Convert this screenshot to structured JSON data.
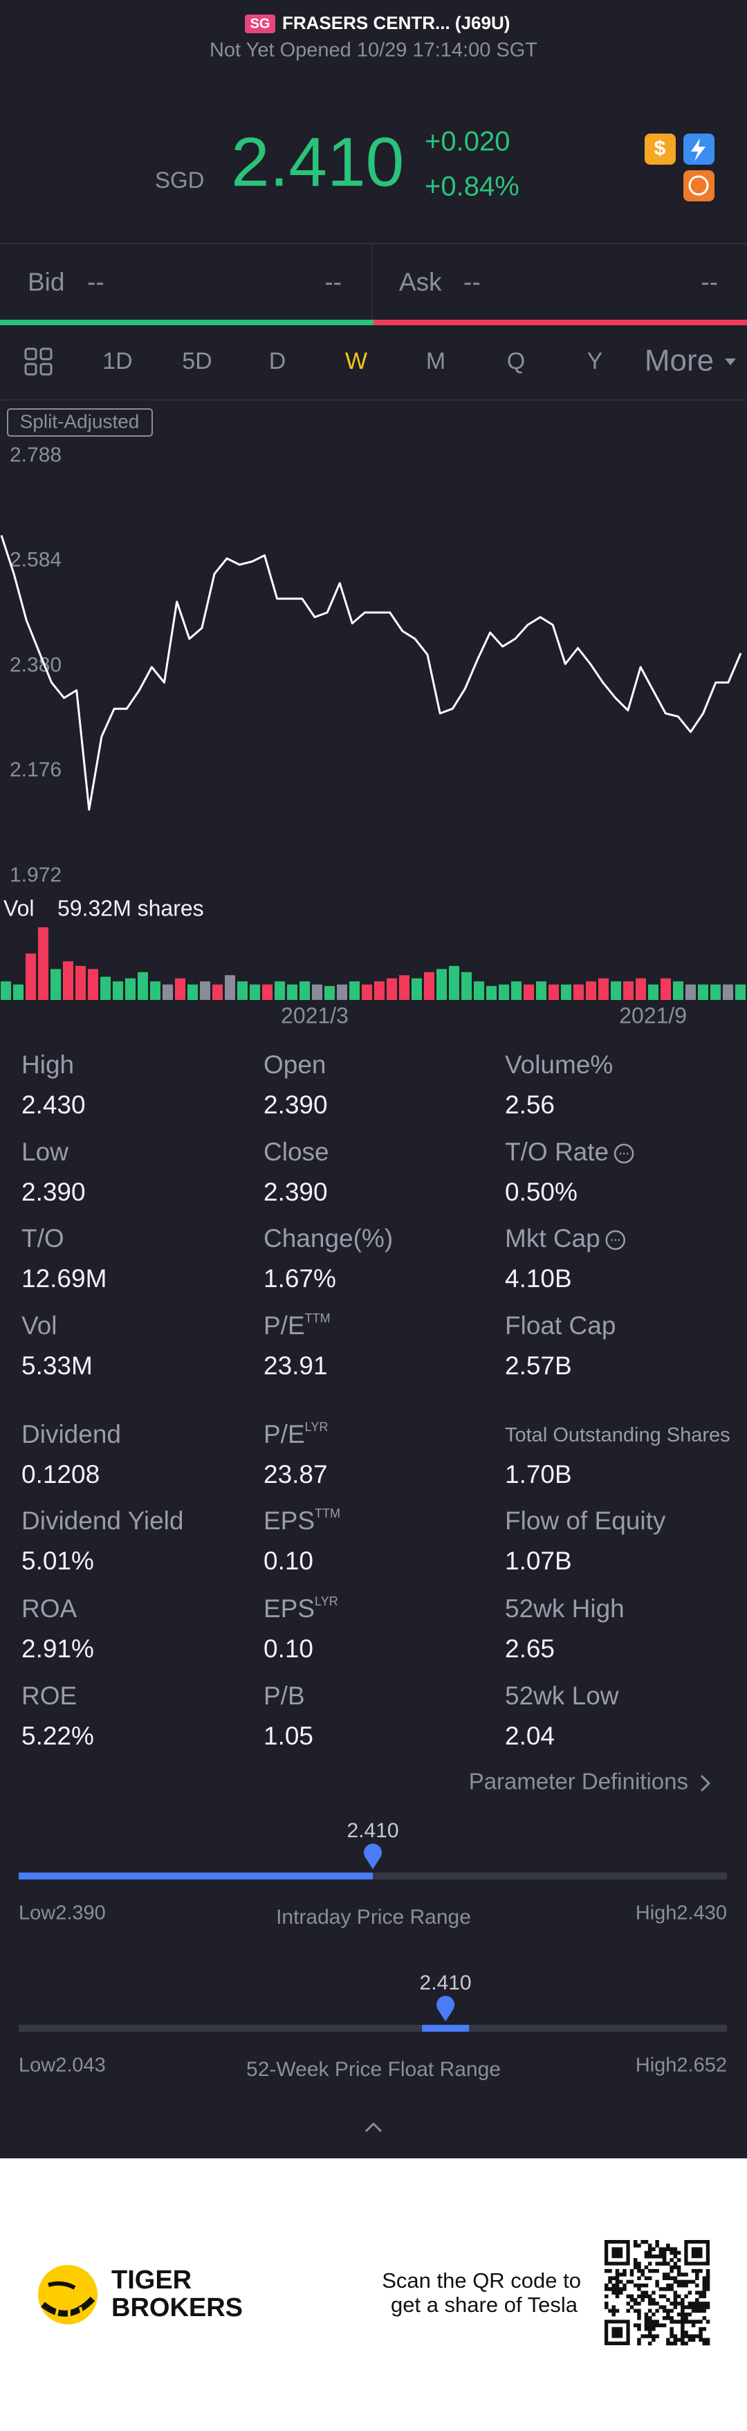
{
  "header": {
    "market_badge": "SG",
    "title": "FRASERS CENTR... (J69U)",
    "status": "Not Yet Opened 10/29 17:14:00 SGT"
  },
  "quote": {
    "currency": "SGD",
    "price": "2.410",
    "change": "+0.020",
    "change_pct": "+0.84%"
  },
  "order_book": {
    "bid_label": "Bid",
    "bid_price": "--",
    "bid_size": "--",
    "ask_label": "Ask",
    "ask_price": "--",
    "ask_size": "--"
  },
  "periods": [
    "1D",
    "5D",
    "D",
    "W",
    "M",
    "Q",
    "Y",
    "More"
  ],
  "active_period": "W",
  "chart_data": {
    "type": "line",
    "badge": "Split-Adjusted",
    "color": "#ffffff",
    "categories": [
      null,
      null,
      null,
      null,
      null,
      null,
      null,
      null,
      null,
      null,
      null,
      null,
      null,
      null,
      null,
      null,
      null,
      null,
      null,
      null,
      null,
      null,
      null,
      null,
      null,
      "2021/3",
      null,
      null,
      null,
      null,
      null,
      null,
      null,
      null,
      null,
      null,
      null,
      null,
      null,
      null,
      null,
      null,
      null,
      null,
      null,
      null,
      null,
      null,
      null,
      null,
      null,
      null,
      "2021/9",
      null,
      null,
      null,
      null,
      null,
      null,
      null
    ],
    "values": [
      2.634,
      2.559,
      2.469,
      2.408,
      2.348,
      2.318,
      2.333,
      2.101,
      2.243,
      2.297,
      2.297,
      2.333,
      2.378,
      2.348,
      2.505,
      2.433,
      2.454,
      2.559,
      2.589,
      2.577,
      2.583,
      2.595,
      2.511,
      2.511,
      2.511,
      2.475,
      2.484,
      2.541,
      2.463,
      2.484,
      2.484,
      2.484,
      2.448,
      2.433,
      2.402,
      2.288,
      2.297,
      2.336,
      2.393,
      2.445,
      2.418,
      2.433,
      2.46,
      2.475,
      2.46,
      2.384,
      2.415,
      2.384,
      2.348,
      2.318,
      2.294,
      2.378,
      2.333,
      2.288,
      2.282,
      2.252,
      2.288,
      2.348,
      2.348,
      2.405
    ],
    "ylim": [
      1.972,
      2.788
    ],
    "yticks": [
      1.972,
      2.176,
      {
        "value": 2.38,
        "label": "2.380"
      },
      2.584,
      2.788
    ],
    "grid": false,
    "volume": {
      "label": "Vol",
      "value_label": "59.32M shares",
      "values": [
        71.2,
        59.3,
        178.0,
        278.8,
        118.6,
        148.3,
        130.5,
        118.6,
        89.0,
        71.2,
        83.0,
        106.8,
        71.2,
        59.3,
        83.0,
        59.3,
        71.2,
        59.3,
        94.9,
        71.2,
        59.3,
        59.3,
        71.2,
        59.3,
        71.2,
        59.3,
        53.4,
        59.3,
        71.2,
        59.3,
        71.2,
        83.0,
        94.9,
        83.0,
        106.8,
        118.6,
        130.5,
        106.8,
        71.2,
        53.4,
        59.3,
        71.2,
        59.3,
        71.2,
        59.3,
        59.3,
        59.3,
        71.2,
        83.0,
        71.2,
        71.2,
        83.0,
        59.3,
        83.0,
        71.2,
        59.3,
        59.3,
        59.3,
        59.3,
        59.32
      ],
      "colors": [
        "#2bc37a",
        "#2bc37a",
        "#f23b5a",
        "#f23b5a",
        "#2bc37a",
        "#f23b5a",
        "#f23b5a",
        "#f23b5a",
        "#2bc37a",
        "#2bc37a",
        "#2bc37a",
        "#2bc37a",
        "#2bc37a",
        "#8a8c99",
        "#f23b5a",
        "#2bc37a",
        "#8a8c99",
        "#f23b5a",
        "#8a8c99",
        "#2bc37a",
        "#2bc37a",
        "#f23b5a",
        "#2bc37a",
        "#2bc37a",
        "#2bc37a",
        "#8a8c99",
        "#2bc37a",
        "#8a8c99",
        "#2bc37a",
        "#f23b5a",
        "#f23b5a",
        "#f23b5a",
        "#f23b5a",
        "#2bc37a",
        "#f23b5a",
        "#2bc37a",
        "#2bc37a",
        "#2bc37a",
        "#2bc37a",
        "#2bc37a",
        "#2bc37a",
        "#2bc37a",
        "#f23b5a",
        "#2bc37a",
        "#f23b5a",
        "#2bc37a",
        "#f23b5a",
        "#f23b5a",
        "#f23b5a",
        "#2bc37a",
        "#f23b5a",
        "#f23b5a",
        "#2bc37a",
        "#f23b5a",
        "#2bc37a",
        "#8a8c99",
        "#2bc37a",
        "#2bc37a",
        "#8a8c99",
        "#2bc37a"
      ]
    }
  },
  "stats": [
    [
      {
        "label": "High",
        "value": "2.430"
      },
      {
        "label": "Open",
        "value": "2.390"
      },
      {
        "label": "Volume%",
        "value": "2.56"
      }
    ],
    [
      {
        "label": "Low",
        "value": "2.390"
      },
      {
        "label": "Close",
        "value": "2.390"
      },
      {
        "label": "T/O Rate",
        "value": "0.50%",
        "info": true
      }
    ],
    [
      {
        "label": "T/O",
        "value": "12.69M"
      },
      {
        "label": "Change(%)",
        "value": "1.67%"
      },
      {
        "label": "Mkt Cap",
        "value": "4.10B",
        "info": true
      }
    ],
    [
      {
        "label": "Vol",
        "value": "5.33M"
      },
      {
        "label": "P/E",
        "sup": "TTM",
        "value": "23.91"
      },
      {
        "label": "Float Cap",
        "value": "2.57B"
      }
    ],
    [
      {
        "label": "Dividend",
        "value": "0.1208"
      },
      {
        "label": "P/E",
        "sup": "LYR",
        "value": "23.87"
      },
      {
        "label": "Total Outstanding Shares",
        "value": "1.70B",
        "small": true
      }
    ],
    [
      {
        "label": "Dividend Yield",
        "value": "5.01%"
      },
      {
        "label": "EPS",
        "sup": "TTM",
        "value": "0.10"
      },
      {
        "label": "Flow of Equity",
        "value": "1.07B"
      }
    ],
    [
      {
        "label": "ROA",
        "value": "2.91%"
      },
      {
        "label": "EPS",
        "sup": "LYR",
        "value": "0.10"
      },
      {
        "label": "52wk High",
        "value": "2.65"
      }
    ],
    [
      {
        "label": "ROE",
        "value": "5.22%"
      },
      {
        "label": "P/B",
        "value": "1.05"
      },
      {
        "label": "52wk Low",
        "value": "2.04"
      }
    ]
  ],
  "parameter_link": "Parameter Definitions",
  "ranges": [
    {
      "title": "Intraday Price Range",
      "bar_style": "fill",
      "low": {
        "value": 2.39,
        "label": "Low2.390"
      },
      "high": {
        "value": 2.43,
        "label": "High2.430"
      },
      "current": {
        "value": 2.41,
        "label": "2.410"
      }
    },
    {
      "title": "52-Week Price Float Range",
      "bar_style": "marker",
      "low": {
        "value": 2.043,
        "label": "Low2.043"
      },
      "high": {
        "value": 2.652,
        "label": "High2.652"
      },
      "current": {
        "value": 2.41,
        "label": "2.410"
      }
    }
  ],
  "footer": {
    "brand": [
      "TIGER",
      "BROKERS"
    ],
    "promo": [
      "Scan the QR code to",
      "get a share of Tesla"
    ]
  }
}
